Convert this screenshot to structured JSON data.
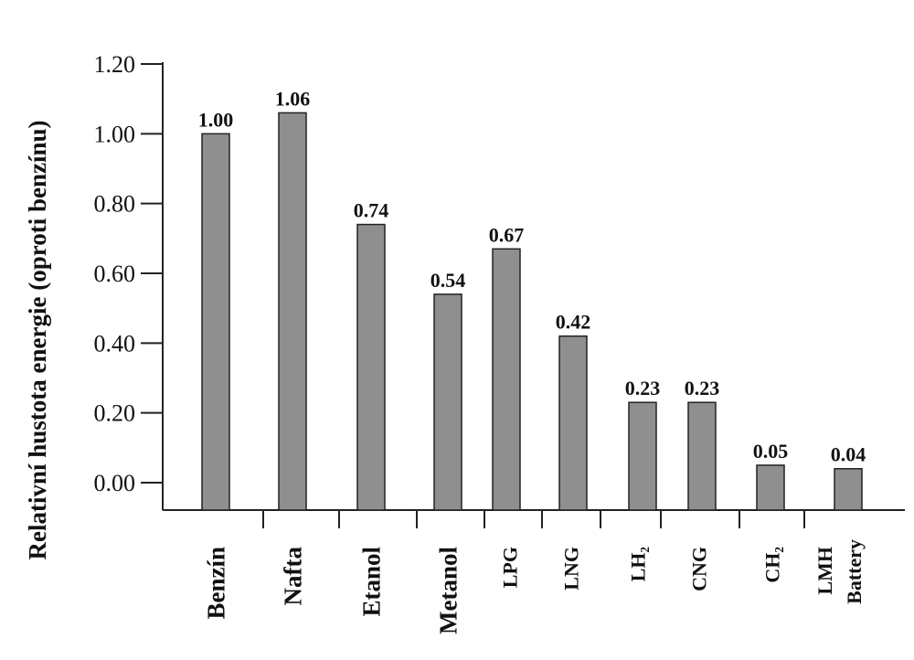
{
  "chart_data": {
    "type": "bar",
    "title": "",
    "xlabel": "",
    "ylabel": "Relativní hustota energie (oproti benzínu)",
    "categories": [
      "Benzín",
      "Nafta",
      "Etanol",
      "Metanol",
      "LPG",
      "LNG",
      "LH₂",
      "CNG",
      "CH₂",
      "LMH Battery"
    ],
    "values": [
      1.0,
      1.06,
      0.74,
      0.54,
      0.67,
      0.42,
      0.23,
      0.23,
      0.05,
      0.04
    ],
    "data_labels": [
      "1.00",
      "1.06",
      "0.74",
      "0.54",
      "0.67",
      "0.42",
      "0.23",
      "0.23",
      "0.05",
      "0.04"
    ],
    "y_ticks": [
      "0.00",
      "0.20",
      "0.40",
      "0.60",
      "0.80",
      "1.00",
      "1.20"
    ],
    "ylim": [
      0,
      1.2
    ],
    "bar_color": "#8f8f8f",
    "grid": false,
    "legend": "none"
  }
}
